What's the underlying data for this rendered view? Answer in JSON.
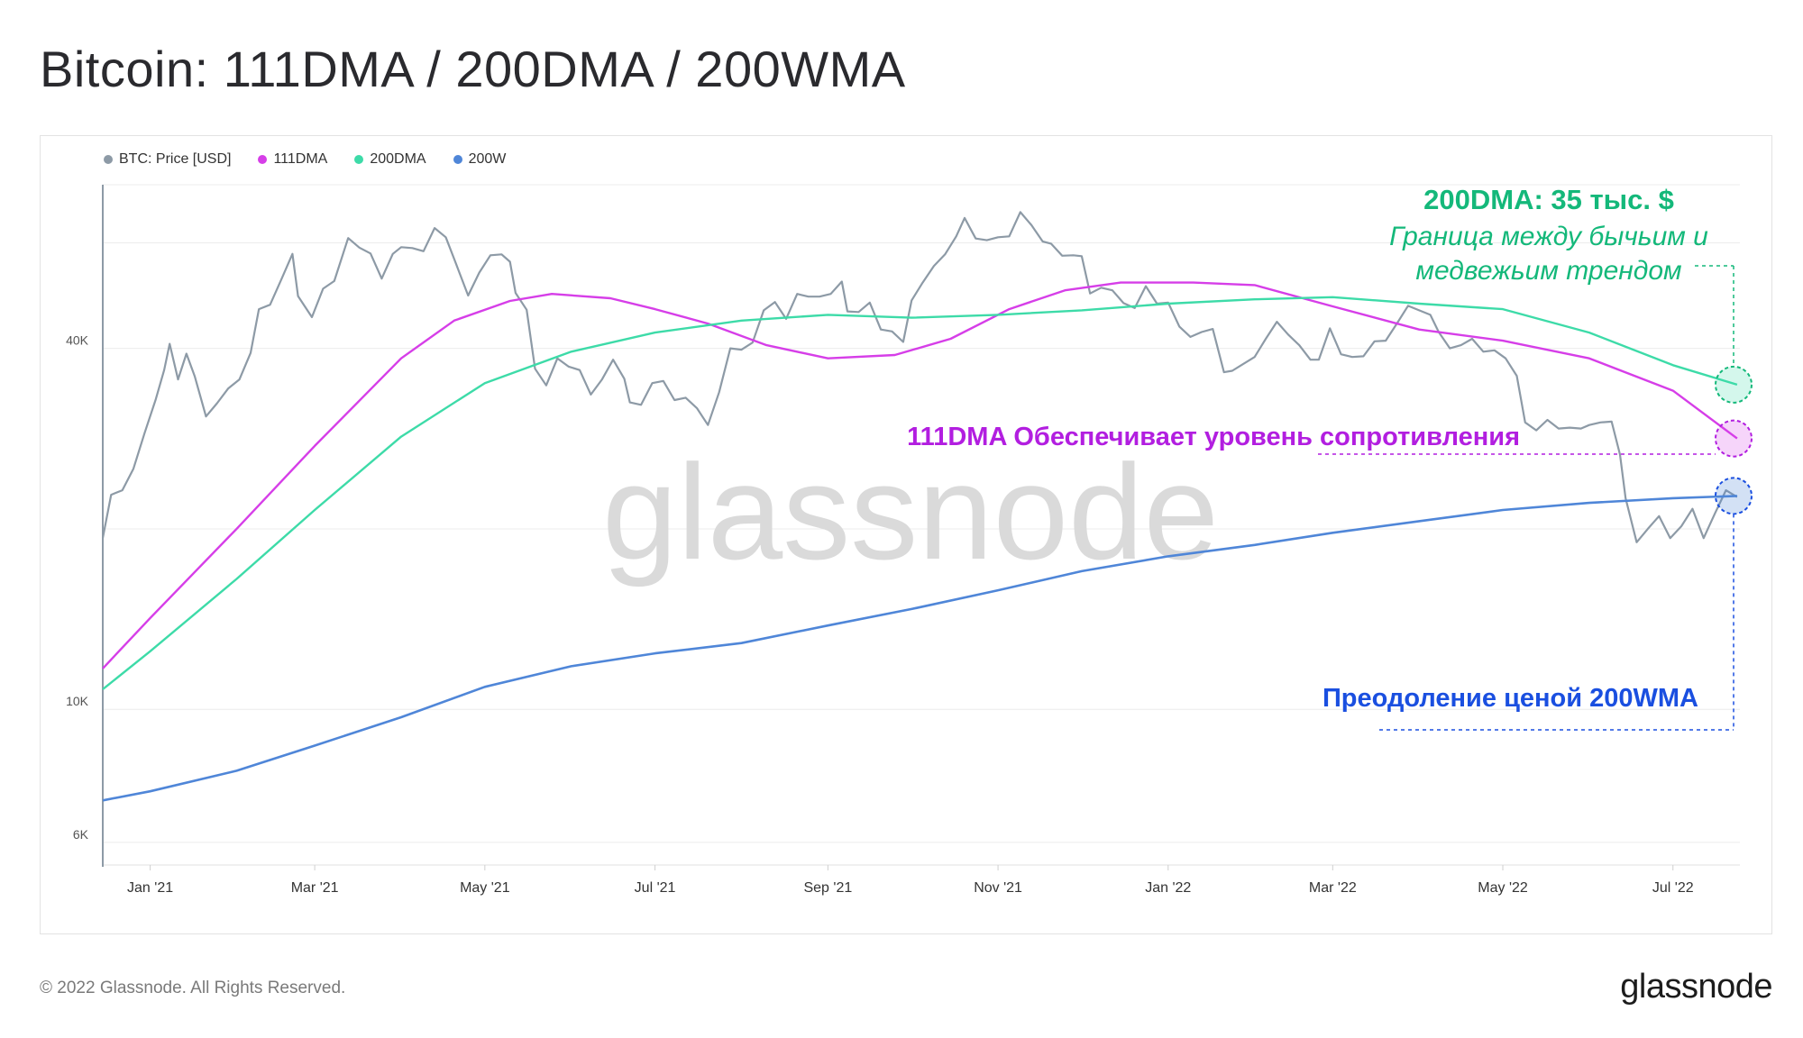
{
  "title": "Bitcoin: 111DMA / 200DMA / 200WMA",
  "footer": {
    "copyright": "© 2022 Glassnode. All Rights Reserved.",
    "logo": "glassnode"
  },
  "watermark": "glassnode",
  "colors": {
    "price": "#8d9aa6",
    "dma111": "#d63ee8",
    "dma200": "#3ddba8",
    "wma200": "#4f86d8"
  },
  "annotations": {
    "dma200_title": "200DMA: 35 тыс. $",
    "dma200_line1": "Граница между бычьим и",
    "dma200_line2": "медвежьим трендом",
    "dma111_text": "111DMA Обеспечивает уровень сопротивления",
    "wma200_text": "Преодоление ценой 200WMA",
    "dma200_color": "#14b87a",
    "dma111_color": "#b21ee0",
    "wma200_color": "#1a4fe0"
  },
  "chart_data": {
    "type": "line",
    "y_scale": "log",
    "ylim": [
      5500,
      75000
    ],
    "y_ticks": [
      {
        "value": 6000,
        "label": "6K"
      },
      {
        "value": 10000,
        "label": "10K"
      },
      {
        "value": 40000,
        "label": "40K"
      }
    ],
    "x_ticks": [
      "Jan '21",
      "Mar '21",
      "May '21",
      "Jul '21",
      "Sep '21",
      "Nov '21",
      "Jan '22",
      "Mar '22",
      "May '22",
      "Jul '22"
    ],
    "x_range": [
      "2020-12-15",
      "2022-07-25"
    ],
    "grid": true,
    "legend_position": "top-left",
    "series": [
      {
        "name": "BTC: Price [USD]",
        "key": "price",
        "points": [
          [
            "2020-12-15",
            19300
          ],
          [
            "2020-12-18",
            22800
          ],
          [
            "2020-12-22",
            23200
          ],
          [
            "2020-12-26",
            25200
          ],
          [
            "2020-12-30",
            28900
          ],
          [
            "2021-01-03",
            32900
          ],
          [
            "2021-01-06",
            36800
          ],
          [
            "2021-01-08",
            40700
          ],
          [
            "2021-01-11",
            35500
          ],
          [
            "2021-01-14",
            39200
          ],
          [
            "2021-01-17",
            35900
          ],
          [
            "2021-01-21",
            30800
          ],
          [
            "2021-01-25",
            32400
          ],
          [
            "2021-01-29",
            34300
          ],
          [
            "2021-02-02",
            35500
          ],
          [
            "2021-02-06",
            39300
          ],
          [
            "2021-02-09",
            46500
          ],
          [
            "2021-02-13",
            47300
          ],
          [
            "2021-02-17",
            52100
          ],
          [
            "2021-02-21",
            57500
          ],
          [
            "2021-02-23",
            48900
          ],
          [
            "2021-02-28",
            45100
          ],
          [
            "2021-03-04",
            50300
          ],
          [
            "2021-03-08",
            51800
          ],
          [
            "2021-03-13",
            61100
          ],
          [
            "2021-03-17",
            58900
          ],
          [
            "2021-03-21",
            57600
          ],
          [
            "2021-03-25",
            52300
          ],
          [
            "2021-03-29",
            57500
          ],
          [
            "2021-04-01",
            59000
          ],
          [
            "2021-04-05",
            58800
          ],
          [
            "2021-04-09",
            58100
          ],
          [
            "2021-04-13",
            63500
          ],
          [
            "2021-04-17",
            61300
          ],
          [
            "2021-04-20",
            56400
          ],
          [
            "2021-04-25",
            49000
          ],
          [
            "2021-04-29",
            53500
          ],
          [
            "2021-05-03",
            57200
          ],
          [
            "2021-05-07",
            57400
          ],
          [
            "2021-05-10",
            55800
          ],
          [
            "2021-05-12",
            49500
          ],
          [
            "2021-05-16",
            46400
          ],
          [
            "2021-05-19",
            37000
          ],
          [
            "2021-05-23",
            34700
          ],
          [
            "2021-05-27",
            38500
          ],
          [
            "2021-05-31",
            37300
          ],
          [
            "2021-06-04",
            36800
          ],
          [
            "2021-06-08",
            33500
          ],
          [
            "2021-06-12",
            35500
          ],
          [
            "2021-06-16",
            38300
          ],
          [
            "2021-06-20",
            35600
          ],
          [
            "2021-06-22",
            32500
          ],
          [
            "2021-06-26",
            32200
          ],
          [
            "2021-06-30",
            35000
          ],
          [
            "2021-07-04",
            35300
          ],
          [
            "2021-07-08",
            32800
          ],
          [
            "2021-07-12",
            33100
          ],
          [
            "2021-07-16",
            31800
          ],
          [
            "2021-07-20",
            29800
          ],
          [
            "2021-07-24",
            33800
          ],
          [
            "2021-07-28",
            40000
          ],
          [
            "2021-08-01",
            39800
          ],
          [
            "2021-08-05",
            40900
          ],
          [
            "2021-08-09",
            46300
          ],
          [
            "2021-08-13",
            47800
          ],
          [
            "2021-08-17",
            44800
          ],
          [
            "2021-08-21",
            49300
          ],
          [
            "2021-08-25",
            48800
          ],
          [
            "2021-08-29",
            48800
          ],
          [
            "2021-09-02",
            49300
          ],
          [
            "2021-09-06",
            51700
          ],
          [
            "2021-09-08",
            46100
          ],
          [
            "2021-09-12",
            46000
          ],
          [
            "2021-09-16",
            47700
          ],
          [
            "2021-09-20",
            43000
          ],
          [
            "2021-09-24",
            42700
          ],
          [
            "2021-09-28",
            41000
          ],
          [
            "2021-10-01",
            48100
          ],
          [
            "2021-10-05",
            51500
          ],
          [
            "2021-10-09",
            54900
          ],
          [
            "2021-10-13",
            57400
          ],
          [
            "2021-10-17",
            61500
          ],
          [
            "2021-10-20",
            66000
          ],
          [
            "2021-10-24",
            61000
          ],
          [
            "2021-10-28",
            60600
          ],
          [
            "2021-11-01",
            61300
          ],
          [
            "2021-11-05",
            61500
          ],
          [
            "2021-11-09",
            67500
          ],
          [
            "2021-11-13",
            64200
          ],
          [
            "2021-11-17",
            60300
          ],
          [
            "2021-11-20",
            59800
          ],
          [
            "2021-11-24",
            57100
          ],
          [
            "2021-11-28",
            57200
          ],
          [
            "2021-12-01",
            57000
          ],
          [
            "2021-12-04",
            49400
          ],
          [
            "2021-12-08",
            50500
          ],
          [
            "2021-12-12",
            50000
          ],
          [
            "2021-12-16",
            47600
          ],
          [
            "2021-12-20",
            46700
          ],
          [
            "2021-12-24",
            50800
          ],
          [
            "2021-12-28",
            47500
          ],
          [
            "2022-01-01",
            47700
          ],
          [
            "2022-01-05",
            43500
          ],
          [
            "2022-01-09",
            41800
          ],
          [
            "2022-01-13",
            42600
          ],
          [
            "2022-01-17",
            43100
          ],
          [
            "2022-01-21",
            36500
          ],
          [
            "2022-01-24",
            36700
          ],
          [
            "2022-01-28",
            37700
          ],
          [
            "2022-02-01",
            38700
          ],
          [
            "2022-02-05",
            41500
          ],
          [
            "2022-02-09",
            44300
          ],
          [
            "2022-02-13",
            42200
          ],
          [
            "2022-02-17",
            40500
          ],
          [
            "2022-02-21",
            38300
          ],
          [
            "2022-02-24",
            38300
          ],
          [
            "2022-02-28",
            43200
          ],
          [
            "2022-03-04",
            39100
          ],
          [
            "2022-03-08",
            38700
          ],
          [
            "2022-03-12",
            38800
          ],
          [
            "2022-03-16",
            41100
          ],
          [
            "2022-03-20",
            41200
          ],
          [
            "2022-03-24",
            44000
          ],
          [
            "2022-03-28",
            47100
          ],
          [
            "2022-04-01",
            46300
          ],
          [
            "2022-04-05",
            45500
          ],
          [
            "2022-04-08",
            42600
          ],
          [
            "2022-04-12",
            40000
          ],
          [
            "2022-04-16",
            40500
          ],
          [
            "2022-04-20",
            41500
          ],
          [
            "2022-04-24",
            39500
          ],
          [
            "2022-04-28",
            39700
          ],
          [
            "2022-05-02",
            38500
          ],
          [
            "2022-05-06",
            36000
          ],
          [
            "2022-05-09",
            30100
          ],
          [
            "2022-05-13",
            29200
          ],
          [
            "2022-05-17",
            30400
          ],
          [
            "2022-05-21",
            29400
          ],
          [
            "2022-05-25",
            29500
          ],
          [
            "2022-05-29",
            29400
          ],
          [
            "2022-06-01",
            29800
          ],
          [
            "2022-06-05",
            30100
          ],
          [
            "2022-06-09",
            30200
          ],
          [
            "2022-06-12",
            26600
          ],
          [
            "2022-06-14",
            22500
          ],
          [
            "2022-06-18",
            19000
          ],
          [
            "2022-06-22",
            20000
          ],
          [
            "2022-06-26",
            21000
          ],
          [
            "2022-06-30",
            19300
          ],
          [
            "2022-07-04",
            20200
          ],
          [
            "2022-07-08",
            21600
          ],
          [
            "2022-07-12",
            19300
          ],
          [
            "2022-07-16",
            21200
          ],
          [
            "2022-07-20",
            23200
          ],
          [
            "2022-07-24",
            22600
          ]
        ]
      },
      {
        "name": "111DMA",
        "key": "dma111",
        "points": [
          [
            "2020-12-15",
            11700
          ],
          [
            "2021-01-01",
            14200
          ],
          [
            "2021-02-01",
            20000
          ],
          [
            "2021-03-01",
            27500
          ],
          [
            "2021-04-01",
            38500
          ],
          [
            "2021-04-20",
            44500
          ],
          [
            "2021-05-10",
            48000
          ],
          [
            "2021-05-25",
            49300
          ],
          [
            "2021-06-15",
            48500
          ],
          [
            "2021-07-01",
            46500
          ],
          [
            "2021-07-20",
            44000
          ],
          [
            "2021-08-10",
            40500
          ],
          [
            "2021-09-01",
            38500
          ],
          [
            "2021-09-25",
            39000
          ],
          [
            "2021-10-15",
            41500
          ],
          [
            "2021-11-05",
            46500
          ],
          [
            "2021-11-25",
            50000
          ],
          [
            "2021-12-15",
            51500
          ],
          [
            "2022-01-10",
            51500
          ],
          [
            "2022-02-01",
            51000
          ],
          [
            "2022-03-01",
            47000
          ],
          [
            "2022-04-01",
            43000
          ],
          [
            "2022-05-01",
            41200
          ],
          [
            "2022-06-01",
            38500
          ],
          [
            "2022-07-01",
            34000
          ],
          [
            "2022-07-24",
            28300
          ]
        ]
      },
      {
        "name": "200DMA",
        "key": "dma200",
        "points": [
          [
            "2020-12-15",
            10800
          ],
          [
            "2021-01-01",
            12500
          ],
          [
            "2021-02-01",
            16500
          ],
          [
            "2021-03-01",
            21500
          ],
          [
            "2021-04-01",
            28500
          ],
          [
            "2021-05-01",
            35000
          ],
          [
            "2021-06-01",
            39500
          ],
          [
            "2021-07-01",
            42500
          ],
          [
            "2021-08-01",
            44500
          ],
          [
            "2021-09-01",
            45500
          ],
          [
            "2021-10-01",
            45000
          ],
          [
            "2021-11-01",
            45500
          ],
          [
            "2021-12-01",
            46300
          ],
          [
            "2022-01-01",
            47500
          ],
          [
            "2022-02-01",
            48300
          ],
          [
            "2022-03-01",
            48700
          ],
          [
            "2022-04-01",
            47500
          ],
          [
            "2022-05-01",
            46500
          ],
          [
            "2022-06-01",
            42500
          ],
          [
            "2022-07-01",
            37500
          ],
          [
            "2022-07-24",
            34800
          ]
        ]
      },
      {
        "name": "200W",
        "key": "wma200",
        "points": [
          [
            "2020-12-15",
            7050
          ],
          [
            "2021-01-01",
            7300
          ],
          [
            "2021-02-01",
            7900
          ],
          [
            "2021-03-01",
            8700
          ],
          [
            "2021-04-01",
            9700
          ],
          [
            "2021-05-01",
            10900
          ],
          [
            "2021-06-01",
            11800
          ],
          [
            "2021-07-01",
            12400
          ],
          [
            "2021-08-01",
            12900
          ],
          [
            "2021-09-01",
            13800
          ],
          [
            "2021-10-01",
            14700
          ],
          [
            "2021-11-01",
            15800
          ],
          [
            "2021-12-01",
            17000
          ],
          [
            "2022-01-01",
            18000
          ],
          [
            "2022-02-01",
            18800
          ],
          [
            "2022-03-01",
            19700
          ],
          [
            "2022-04-01",
            20600
          ],
          [
            "2022-05-01",
            21500
          ],
          [
            "2022-06-01",
            22100
          ],
          [
            "2022-07-01",
            22500
          ],
          [
            "2022-07-24",
            22700
          ]
        ]
      }
    ]
  }
}
